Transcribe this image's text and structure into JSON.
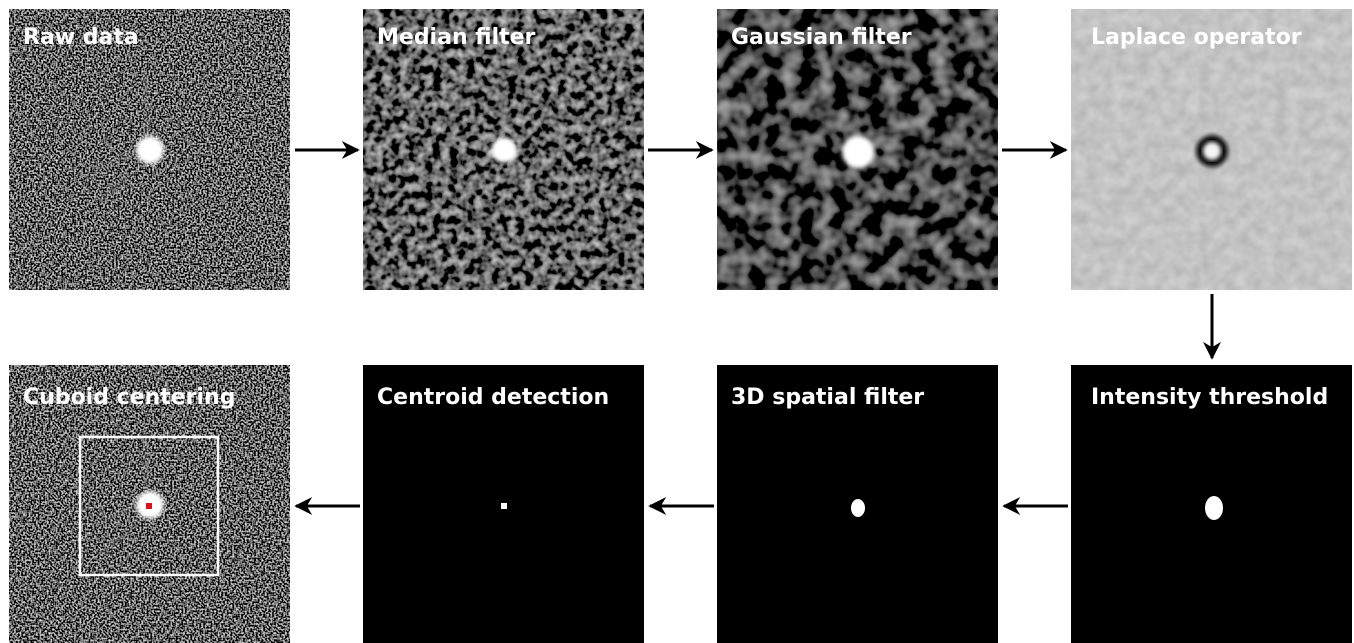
{
  "panels": [
    {
      "label": "Raw data"
    },
    {
      "label": "Median filter"
    },
    {
      "label": "Gaussian filter"
    },
    {
      "label": "Laplace operator"
    },
    {
      "label": "Intensity threshold"
    },
    {
      "label": "3D spatial filter"
    },
    {
      "label": "Centroid detection"
    },
    {
      "label": "Cuboid centering"
    }
  ]
}
